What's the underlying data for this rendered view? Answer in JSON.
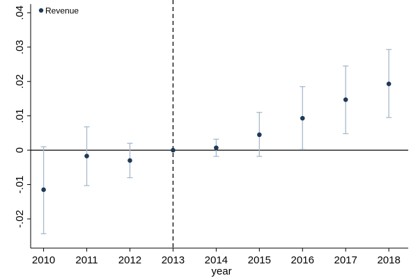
{
  "chart_data": {
    "type": "scatter",
    "title": "",
    "xlabel": "year",
    "ylabel": "",
    "x": [
      2010,
      2011,
      2012,
      2013,
      2014,
      2015,
      2016,
      2017,
      2018
    ],
    "series": [
      {
        "name": "Revenue",
        "values": [
          -0.0115,
          -0.0017,
          -0.003,
          0.0,
          0.0007,
          0.0045,
          0.0093,
          0.0147,
          0.0193
        ],
        "ci_low": [
          -0.0243,
          -0.0103,
          -0.008,
          0.0,
          -0.0018,
          -0.0018,
          0.0002,
          0.0048,
          0.0095
        ],
        "ci_high": [
          0.001,
          0.0068,
          0.002,
          0.0,
          0.0032,
          0.011,
          0.0185,
          0.0245,
          0.0293
        ]
      }
    ],
    "yticks": [
      -0.02,
      -0.01,
      0,
      0.01,
      0.02,
      0.03,
      0.04
    ],
    "ytick_labels": [
      "-.02",
      "-.01",
      "0",
      ".01",
      ".02",
      ".03",
      ".04"
    ],
    "xticks": [
      2010,
      2011,
      2012,
      2013,
      2014,
      2015,
      2016,
      2017,
      2018
    ],
    "xtick_labels": [
      "2010",
      "2011",
      "2012",
      "2013",
      "2014",
      "2015",
      "2016",
      "2017",
      "2018"
    ],
    "ylim": [
      -0.0285,
      0.0425
    ],
    "xlim": [
      2009.7,
      2018.45
    ],
    "reference_lines": {
      "horizontal_y": 0,
      "vertical_x": 2013
    },
    "grid": false,
    "legend_position": "top-left",
    "colors": {
      "marker": "#1f3a56",
      "ci": "#a7b9cb",
      "axis": "#000000"
    }
  }
}
